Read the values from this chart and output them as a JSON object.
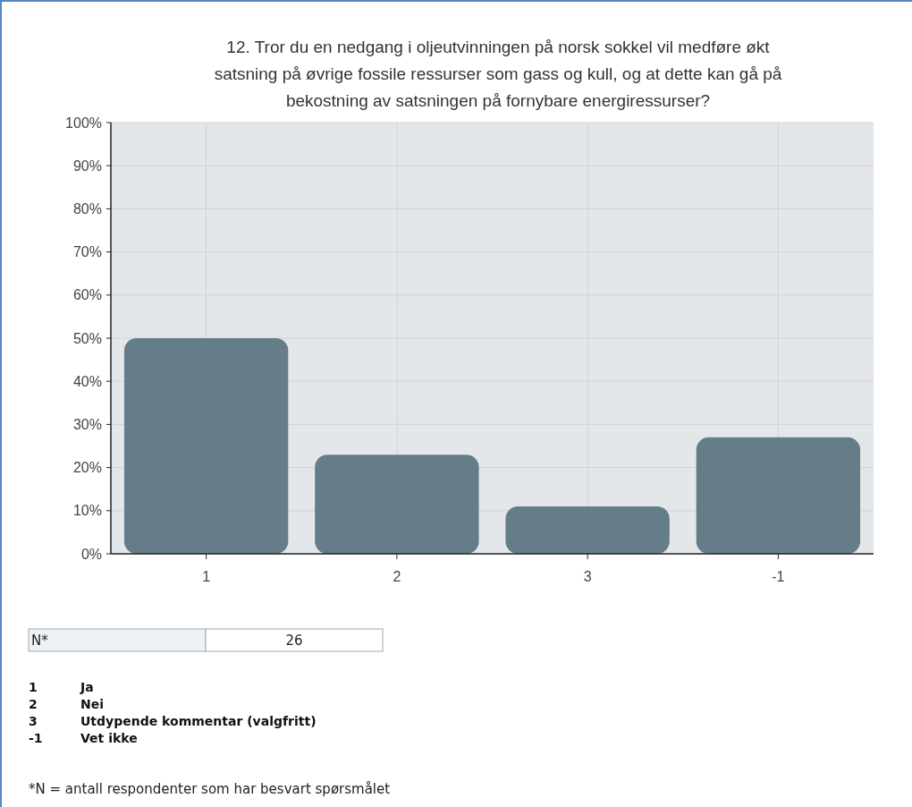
{
  "chart_data": {
    "type": "bar",
    "title": "12. Tror du en nedgang i oljeutvinningen på norsk sokkel vil medføre økt satsning på øvrige fossile ressurser som gass og kull, og at dette kan gå på bekostning av satsningen på fornybare energiressurser?",
    "categories": [
      "1",
      "2",
      "3",
      "-1"
    ],
    "values": [
      50,
      23,
      11,
      27
    ],
    "color": "#657d89",
    "ylim": [
      0,
      100
    ],
    "yticks": [
      {
        "value": 0,
        "label": "0%"
      },
      {
        "value": 10,
        "label": "10%"
      },
      {
        "value": 20,
        "label": "20%"
      },
      {
        "value": 30,
        "label": "30%"
      },
      {
        "value": 40,
        "label": "40%"
      },
      {
        "value": 50,
        "label": "50%"
      },
      {
        "value": 60,
        "label": "60%"
      },
      {
        "value": 70,
        "label": "70%"
      },
      {
        "value": 80,
        "label": "80%"
      },
      {
        "value": 90,
        "label": "90%"
      },
      {
        "value": 100,
        "label": "100%"
      }
    ],
    "grid": true,
    "annotations": [
      "N*",
      "26",
      "1",
      "Ja",
      "2",
      "Nei",
      "3",
      "Utdypende kommentar (valgfritt)",
      "-1",
      "Vet ikke",
      "*N = antall respondenter som har besvart spørsmålet"
    ]
  }
}
